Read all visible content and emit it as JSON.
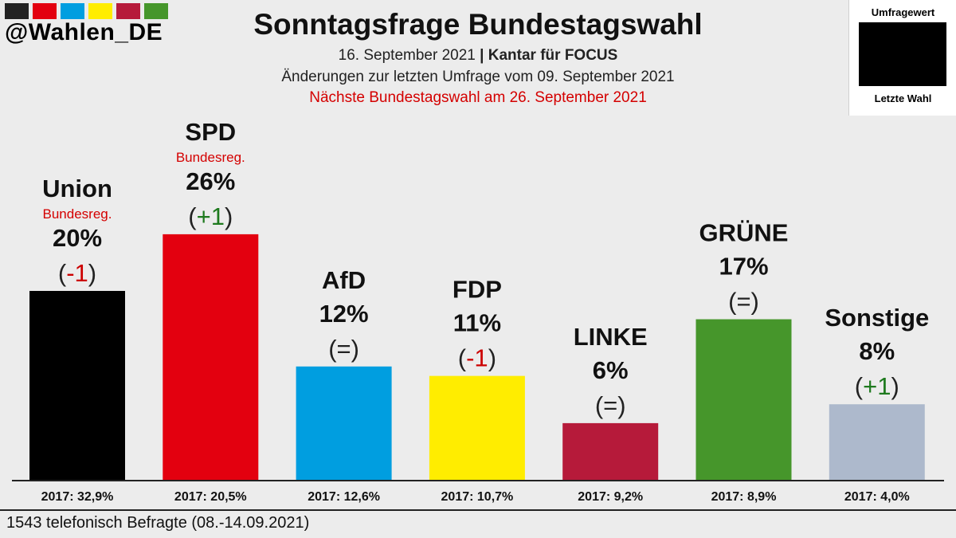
{
  "header": {
    "handle": "@Wahlen_DE",
    "title": "Sonntagsfrage Bundestagswahl",
    "date": "16. September 2021",
    "separator": "|",
    "institute": "Kantar für FOCUS",
    "change_note": "Änderungen zur letzten Umfrage vom 09. September 2021",
    "next_election": "Nächste Bundestagswahl am 26. September 2021",
    "stripe_colors": [
      "#222222",
      "#e3000f",
      "#009ee0",
      "#ffed00",
      "#b61a3a",
      "#46962b"
    ]
  },
  "legend": {
    "top_label": "Umfragewert",
    "bottom_label": "Letzte Wahl"
  },
  "chart_data": {
    "type": "bar",
    "categories": [
      "Union",
      "SPD",
      "AfD",
      "FDP",
      "LINKE",
      "GRÜNE",
      "Sonstige"
    ],
    "values": [
      20,
      26,
      12,
      11,
      6,
      17,
      8
    ],
    "value_labels": [
      "20%",
      "26%",
      "12%",
      "11%",
      "6%",
      "17%",
      "8%"
    ],
    "changes": [
      "(-1)",
      "(+1)",
      "(=)",
      "(-1)",
      "(=)",
      "(=)",
      "(+1)"
    ],
    "change_types": [
      "down",
      "up",
      "same",
      "down",
      "same",
      "same",
      "up"
    ],
    "government": [
      "Bundesreg.",
      "Bundesreg.",
      "",
      "",
      "",
      "",
      ""
    ],
    "previous_election_labels": [
      "2017: 32,9%",
      "2017: 20,5%",
      "2017: 12,6%",
      "2017: 10,7%",
      "2017: 9,2%",
      "2017: 8,9%",
      "2017: 4,0%"
    ],
    "previous_election_values": [
      32.9,
      20.5,
      12.6,
      10.7,
      9.2,
      8.9,
      4.0
    ],
    "colors": [
      "#000000",
      "#e3000f",
      "#009ee0",
      "#ffed00",
      "#b61a3a",
      "#46962b",
      "#adb9cc"
    ],
    "change_colors": {
      "up": "#1e7a1e",
      "down": "#cc0000",
      "same": "#222222"
    },
    "ylim": [
      0,
      28
    ]
  },
  "footer": {
    "note": "1543 telefonisch Befragte (08.-14.09.2021)"
  }
}
